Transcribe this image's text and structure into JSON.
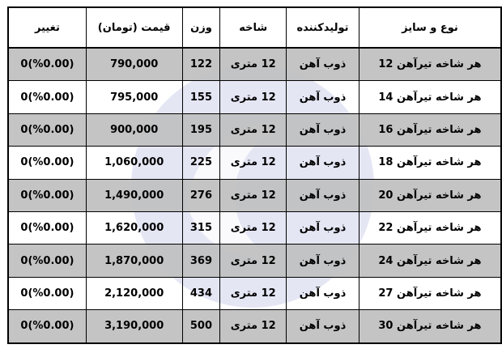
{
  "colors": {
    "row_alt": "#c0c0c0",
    "watermark": "#e4e6f4"
  },
  "headers": [
    "نوع و سایز",
    "تولیدکننده",
    "شاخه",
    "وزن",
    "قیمت (تومان)",
    "تغییر"
  ],
  "rows": [
    {
      "type": "هر شاخه تیرآهن 12",
      "maker": "ذوب آهن",
      "branch": "12 متری",
      "weight": "122",
      "price": "790,000",
      "change": "0(%0.00)"
    },
    {
      "type": "هر شاخه تیرآهن 14",
      "maker": "ذوب آهن",
      "branch": "12 متری",
      "weight": "155",
      "price": "795,000",
      "change": "0(%0.00)"
    },
    {
      "type": "هر شاخه تیرآهن 16",
      "maker": "ذوب آهن",
      "branch": "12 متری",
      "weight": "195",
      "price": "900,000",
      "change": "0(%0.00)"
    },
    {
      "type": "هر شاخه تیرآهن 18",
      "maker": "ذوب آهن",
      "branch": "12 متری",
      "weight": "225",
      "price": "1,060,000",
      "change": "0(%0.00)"
    },
    {
      "type": "هر شاخه تیرآهن 20",
      "maker": "ذوب آهن",
      "branch": "12 متری",
      "weight": "276",
      "price": "1,490,000",
      "change": "0(%0.00)"
    },
    {
      "type": "هر شاخه تیرآهن 22",
      "maker": "ذوب آهن",
      "branch": "12 متری",
      "weight": "315",
      "price": "1,620,000",
      "change": "0(%0.00)"
    },
    {
      "type": "هر شاخه تیرآهن 24",
      "maker": "ذوب آهن",
      "branch": "12 متری",
      "weight": "369",
      "price": "1,870,000",
      "change": "0(%0.00)"
    },
    {
      "type": "هر شاخه تیرآهن 27",
      "maker": "ذوب آهن",
      "branch": "12 متری",
      "weight": "434",
      "price": "2,120,000",
      "change": "0(%0.00)"
    },
    {
      "type": "هر شاخه تیرآهن 30",
      "maker": "ذوب آهن",
      "branch": "12 متری",
      "weight": "500",
      "price": "3,190,000",
      "change": "0(%0.00)"
    }
  ]
}
